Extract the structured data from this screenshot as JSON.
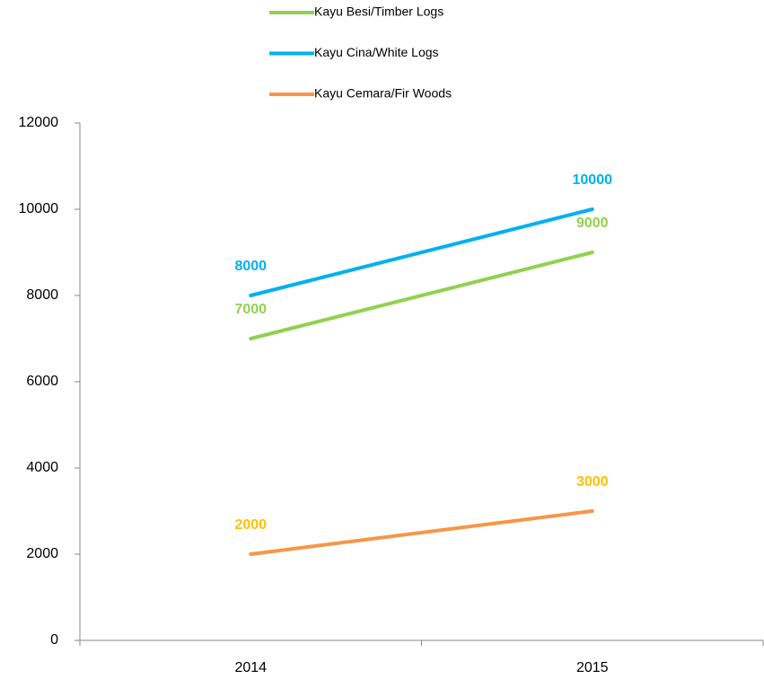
{
  "chart_data": {
    "type": "line",
    "categories": [
      "2014",
      "2015"
    ],
    "series": [
      {
        "name": "Kayu Besi/Timber Logs",
        "color": "#92d050",
        "label_color": "#92d050",
        "values": [
          7000,
          9000
        ]
      },
      {
        "name": "Kayu Cina/White Logs",
        "color": "#00b0f0",
        "label_color": "#00b0f0",
        "values": [
          8000,
          10000
        ]
      },
      {
        "name": "Kayu Cemara/Fir Woods",
        "color": "#f79646",
        "label_color": "#ffc000",
        "values": [
          2000,
          3000
        ]
      }
    ],
    "ylim": [
      0,
      12000
    ],
    "yticks": [
      0,
      2000,
      4000,
      6000,
      8000,
      10000,
      12000
    ],
    "grid": false,
    "legend": "top"
  }
}
